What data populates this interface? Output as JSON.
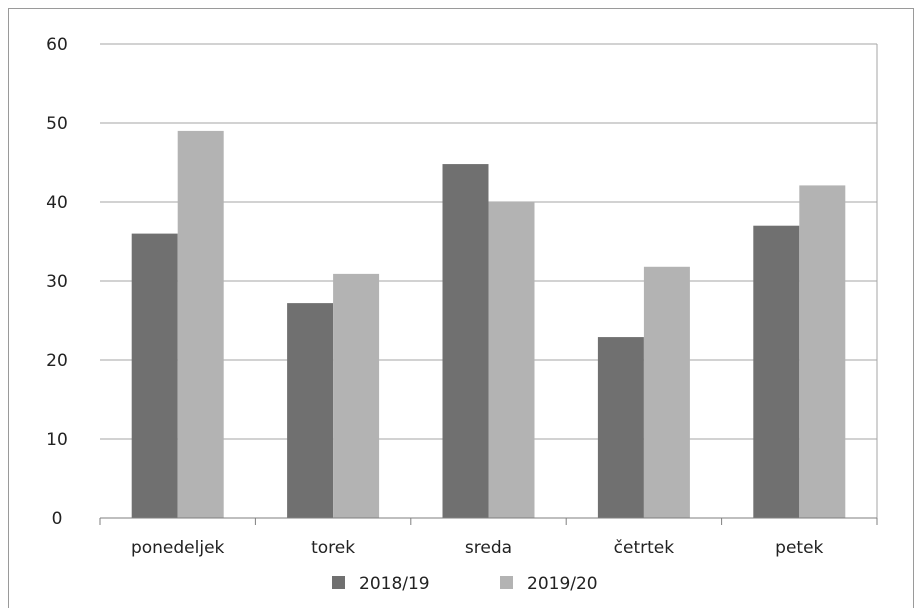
{
  "chart_data": {
    "type": "bar",
    "title": "",
    "xlabel": "",
    "ylabel": "",
    "categories": [
      "ponedeljek",
      "torek",
      "sreda",
      "četrtek",
      "petek"
    ],
    "series": [
      {
        "name": "2018/19",
        "color": "#707070",
        "values": [
          36,
          27.2,
          44.8,
          22.9,
          37
        ]
      },
      {
        "name": "2019/20",
        "color": "#b3b3b3",
        "values": [
          49,
          30.9,
          40,
          31.8,
          42.1
        ]
      }
    ],
    "ylim": [
      0,
      60
    ],
    "yticks": [
      "0",
      "10",
      "20",
      "30",
      "40",
      "50",
      "60"
    ],
    "grid": true,
    "legend_position": "bottom"
  }
}
